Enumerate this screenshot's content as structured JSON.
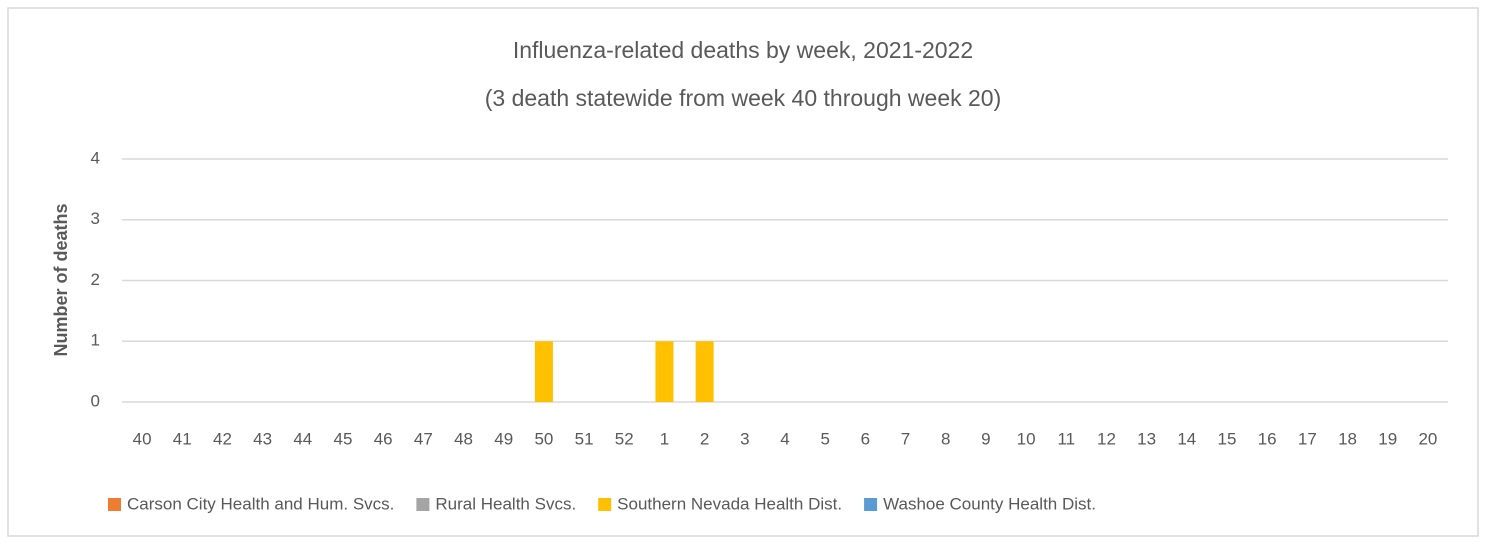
{
  "chart_data": {
    "type": "stacked_bar",
    "title": "Influenza-related deaths by week, 2021-2022",
    "subtitle": "(3 death statewide from week 40 through week 20)",
    "y_label": "Number of deaths",
    "categories": [
      "40",
      "41",
      "42",
      "43",
      "44",
      "45",
      "46",
      "47",
      "48",
      "49",
      "50",
      "51",
      "52",
      "1",
      "2",
      "3",
      "4",
      "5",
      "6",
      "7",
      "8",
      "9",
      "10",
      "11",
      "12",
      "13",
      "14",
      "15",
      "16",
      "17",
      "18",
      "19",
      "20"
    ],
    "series": [
      {
        "name": "Carson City Health and Hum. Svcs.",
        "color": "#ed7d31",
        "values": [
          0,
          0,
          0,
          0,
          0,
          0,
          0,
          0,
          0,
          0,
          0,
          0,
          0,
          0,
          0,
          null,
          null,
          null,
          null,
          null,
          null,
          null,
          null,
          null,
          null,
          null,
          null,
          null,
          null,
          null,
          null,
          null,
          null
        ]
      },
      {
        "name": "Rural Health Svcs.",
        "color": "#a5a5a5",
        "values": [
          0,
          0,
          0,
          0,
          0,
          0,
          0,
          0,
          0,
          0,
          0,
          0,
          0,
          0,
          0,
          null,
          null,
          null,
          null,
          null,
          null,
          null,
          null,
          null,
          null,
          null,
          null,
          null,
          null,
          null,
          null,
          null,
          null
        ]
      },
      {
        "name": "Southern Nevada Health Dist.",
        "color": "#ffc000",
        "values": [
          0,
          0,
          0,
          0,
          0,
          0,
          0,
          0,
          0,
          0,
          1,
          0,
          0,
          1,
          1,
          null,
          null,
          null,
          null,
          null,
          null,
          null,
          null,
          null,
          null,
          null,
          null,
          null,
          null,
          null,
          null,
          null,
          null
        ]
      },
      {
        "name": "Washoe County Health Dist.",
        "color": "#5b9bd5",
        "values": [
          0,
          0,
          0,
          0,
          0,
          0,
          0,
          0,
          0,
          0,
          0,
          0,
          0,
          0,
          0,
          null,
          null,
          null,
          null,
          null,
          null,
          null,
          null,
          null,
          null,
          null,
          null,
          null,
          null,
          null,
          null,
          null,
          null
        ]
      }
    ],
    "ylim": [
      0,
      4
    ],
    "yticks": [
      0,
      1,
      2,
      3,
      4
    ],
    "grid": true,
    "legend": "bottom"
  }
}
